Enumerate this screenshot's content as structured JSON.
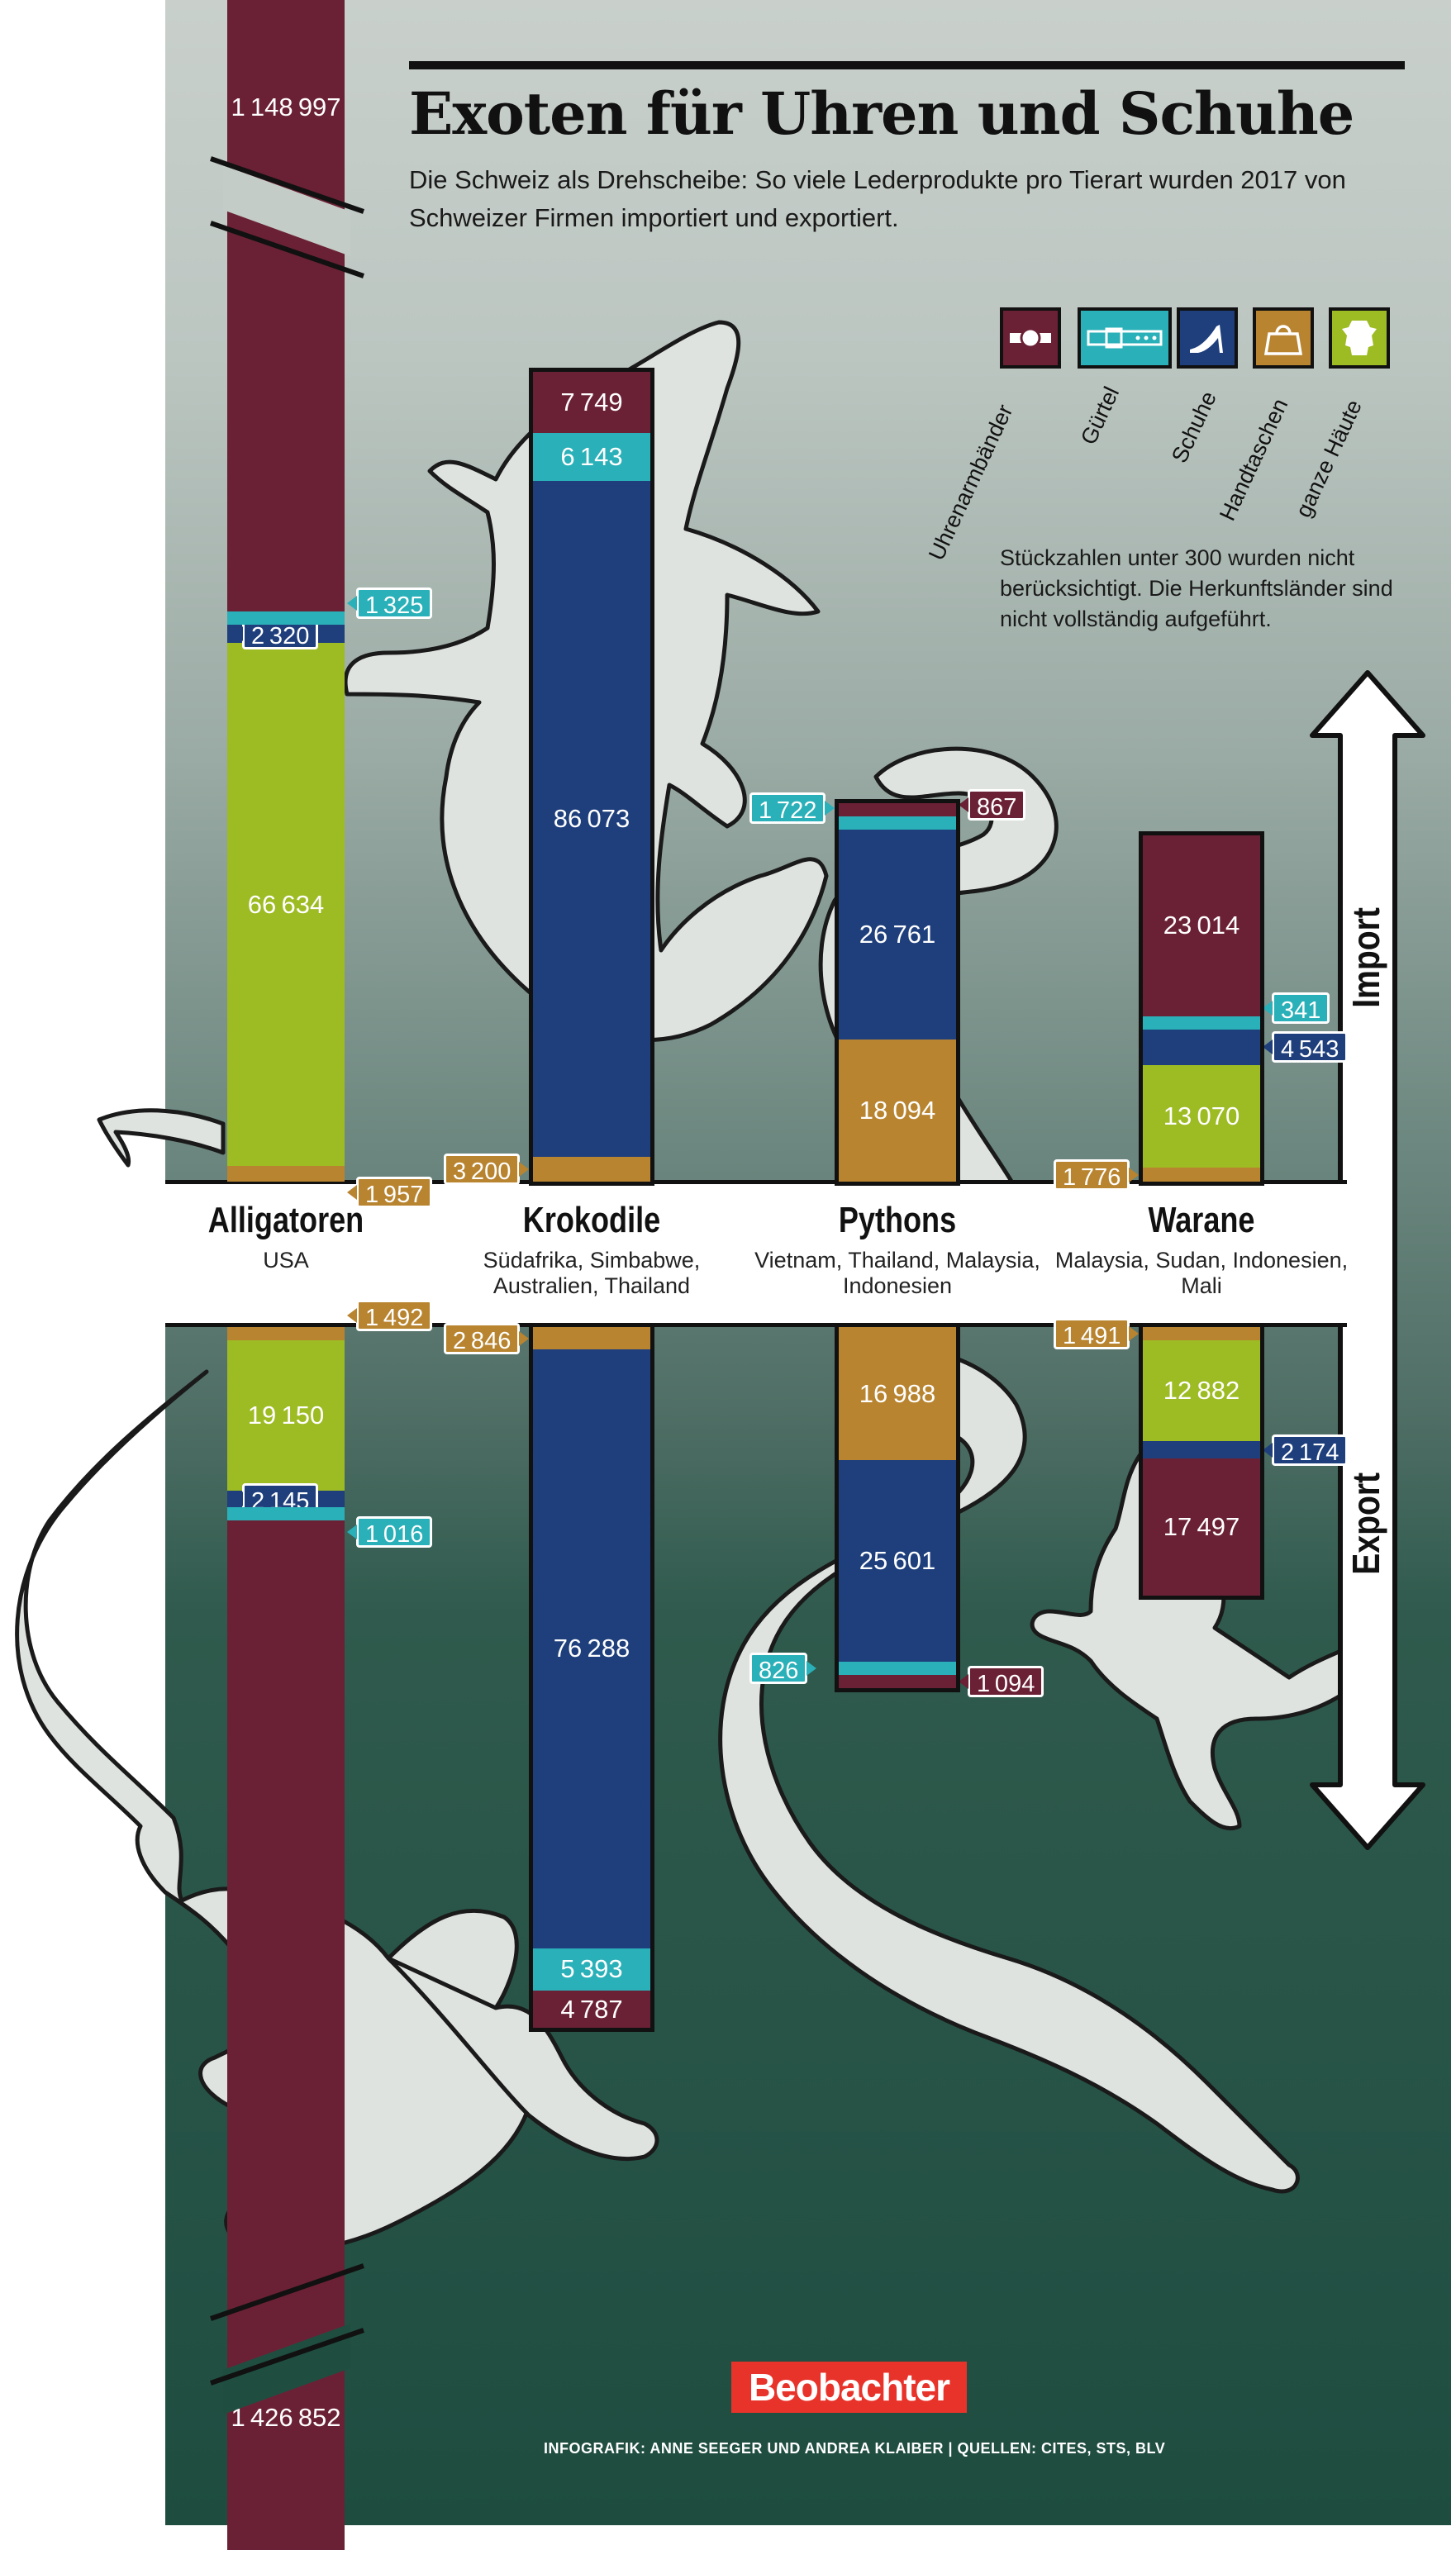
{
  "header": {
    "title": "Exoten für Uhren und Schuhe",
    "subtitle": "Die Schweiz als Drehscheibe: So viele Lederprodukte pro Tierart wurden 2017 von Schweizer Firmen importiert und exportiert.",
    "note": "Stückzahlen unter 300 wurden nicht berücksichtigt. Die Herkunftsländer sind nicht vollständig aufgeführt."
  },
  "legend": [
    {
      "label": "Uhrenarmbänder",
      "color": "#6b2135",
      "icon": "watch-strap-icon"
    },
    {
      "label": "Gürtel",
      "color": "#2ab0b8",
      "icon": "belt-icon"
    },
    {
      "label": "Schuhe",
      "color": "#1e3f7c",
      "icon": "shoe-icon"
    },
    {
      "label": "Handtaschen",
      "color": "#b88430",
      "icon": "handbag-icon"
    },
    {
      "label": "ganze Häute",
      "color": "#9dbb23",
      "icon": "hide-icon"
    }
  ],
  "arrow": {
    "import_label": "Import",
    "export_label": "Export"
  },
  "footer": {
    "logo": "Beobachter",
    "credit": "INFOGRAFIK: ANNE SEEGER UND ANDREA KLAIBER | QUELLEN: CITES, STS, BLV"
  },
  "chart_data": {
    "type": "bar",
    "title": "Exoten für Uhren und Schuhe",
    "layout": "diverging stacked bars (import up, export down)",
    "units": "Stück",
    "axis_break_alligator_watch_straps": true,
    "series_order": [
      "Uhrenarmbänder",
      "Gürtel",
      "Schuhe",
      "Handtaschen",
      "ganze Häute"
    ],
    "categories": [
      {
        "name": "Alligatoren",
        "origin": "USA",
        "import": {
          "Uhrenarmbänder": 1148997,
          "Gürtel": 1325,
          "Schuhe": 2320,
          "Handtaschen": 1957,
          "ganze Häute": 66634
        },
        "export": {
          "Uhrenarmbänder": 1426852,
          "Gürtel": 1016,
          "Schuhe": 2145,
          "Handtaschen": 1492,
          "ganze Häute": 19150
        }
      },
      {
        "name": "Krokodile",
        "origin": "Südafrika, Simbabwe, Australien, Thailand",
        "import": {
          "Uhrenarmbänder": 7749,
          "Gürtel": 6143,
          "Schuhe": 86073,
          "Handtaschen": 3200
        },
        "export": {
          "Uhrenarmbänder": 4787,
          "Gürtel": 5393,
          "Schuhe": 76288,
          "Handtaschen": 2846
        }
      },
      {
        "name": "Pythons",
        "origin": "Vietnam, Thailand, Malaysia, Indonesien",
        "import": {
          "Uhrenarmbänder": 867,
          "Gürtel": 1722,
          "Schuhe": 26761,
          "Handtaschen": 18094
        },
        "export": {
          "Uhrenarmbänder": 1094,
          "Gürtel": 826,
          "Schuhe": 25601,
          "Handtaschen": 16988
        }
      },
      {
        "name": "Warane",
        "origin": "Malaysia, Sudan, Indonesien, Mali",
        "import": {
          "Uhrenarmbänder": 23014,
          "Gürtel": 341,
          "Schuhe": 4543,
          "Handtaschen": 1776,
          "ganze Häute": 13070
        },
        "export": {
          "Uhrenarmbänder": 17497,
          "Schuhe": 2174,
          "Handtaschen": 1491,
          "ganze Häute": 12882
        }
      }
    ]
  }
}
